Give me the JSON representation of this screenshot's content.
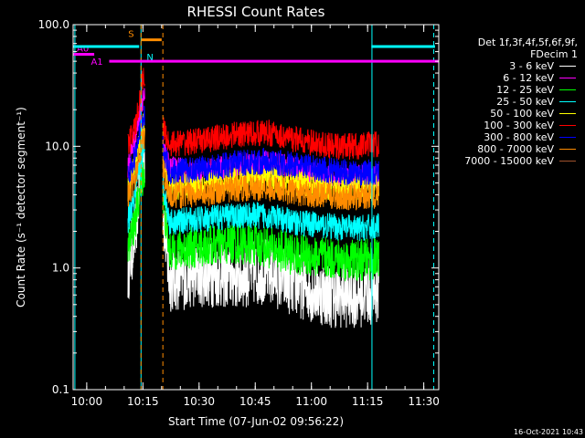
{
  "chart_data": {
    "type": "line",
    "title": "RHESSI Count Rates",
    "ylabel": "Count Rate (s⁻¹ detector segment⁻¹)",
    "xlabel": "Start Time (07-Jun-02 09:56:22)",
    "ylim": [
      0.1,
      100.0
    ],
    "yscale": "log",
    "yticks": [
      "100.0",
      "10.0",
      "1.0",
      "0.1"
    ],
    "xlim": [
      "09:56:22",
      "11:34:00"
    ],
    "xticks": [
      "10:00",
      "10:15",
      "10:30",
      "10:45",
      "11:00",
      "11:15",
      "11:30"
    ],
    "data_window": [
      "10:07:00",
      "11:19:00"
    ],
    "gap": [
      "10:15:30",
      "10:20:20"
    ],
    "series": [
      {
        "name": "3 - 6 keV",
        "color": "#ffffff",
        "points": [
          [
            "10:11",
            0.95
          ],
          [
            "10:13",
            2.0
          ],
          [
            "10:15",
            9.0
          ],
          [
            "10:20",
            4.0
          ],
          [
            "10:22",
            0.8
          ],
          [
            "10:30",
            0.9
          ],
          [
            "10:40",
            0.85
          ],
          [
            "10:48",
            0.95
          ],
          [
            "10:55",
            0.75
          ],
          [
            "11:05",
            0.6
          ],
          [
            "11:12",
            0.6
          ],
          [
            "11:18",
            0.65
          ]
        ]
      },
      {
        "name": "6 - 12 keV",
        "color": "#ff00ff",
        "points": [
          [
            "10:11",
            7.0
          ],
          [
            "10:13",
            12.0
          ],
          [
            "10:15",
            26.0
          ],
          [
            "10:20",
            10.0
          ],
          [
            "10:22",
            6.5
          ],
          [
            "10:30",
            6.0
          ],
          [
            "10:40",
            6.8
          ],
          [
            "10:48",
            7.2
          ],
          [
            "10:55",
            6.5
          ],
          [
            "11:05",
            5.5
          ],
          [
            "11:12",
            5.5
          ],
          [
            "11:18",
            5.6
          ]
        ]
      },
      {
        "name": "12 - 25 keV",
        "color": "#00ff00",
        "points": [
          [
            "10:11",
            1.4
          ],
          [
            "10:13",
            2.5
          ],
          [
            "10:15",
            6.0
          ],
          [
            "10:20",
            5.0
          ],
          [
            "10:22",
            1.4
          ],
          [
            "10:30",
            1.5
          ],
          [
            "10:40",
            1.6
          ],
          [
            "10:48",
            1.5
          ],
          [
            "10:55",
            1.3
          ],
          [
            "11:05",
            1.2
          ],
          [
            "11:12",
            1.15
          ],
          [
            "11:18",
            1.2
          ]
        ]
      },
      {
        "name": "25 - 50 keV",
        "color": "#00ffff",
        "points": [
          [
            "10:11",
            2.4
          ],
          [
            "10:13",
            4.0
          ],
          [
            "10:15",
            9.0
          ],
          [
            "10:20",
            6.0
          ],
          [
            "10:22",
            2.4
          ],
          [
            "10:30",
            2.5
          ],
          [
            "10:40",
            2.7
          ],
          [
            "10:48",
            2.7
          ],
          [
            "10:55",
            2.4
          ],
          [
            "11:05",
            2.2
          ],
          [
            "11:12",
            2.1
          ],
          [
            "11:18",
            2.2
          ]
        ]
      },
      {
        "name": "50 - 100 keV",
        "color": "#ffff00",
        "points": [
          [
            "10:11",
            4.5
          ],
          [
            "10:13",
            7.0
          ],
          [
            "10:15",
            15.0
          ],
          [
            "10:20",
            9.0
          ],
          [
            "10:22",
            4.6
          ],
          [
            "10:30",
            4.9
          ],
          [
            "10:40",
            5.3
          ],
          [
            "10:48",
            5.5
          ],
          [
            "10:55",
            5.0
          ],
          [
            "11:05",
            4.6
          ],
          [
            "11:12",
            4.5
          ],
          [
            "11:18",
            4.6
          ]
        ]
      },
      {
        "name": "100 - 300 keV",
        "color": "#ff0000",
        "points": [
          [
            "10:11",
            10.5
          ],
          [
            "10:13",
            14.0
          ],
          [
            "10:15",
            38.0
          ],
          [
            "10:20",
            15.0
          ],
          [
            "10:22",
            10.5
          ],
          [
            "10:30",
            11.0
          ],
          [
            "10:40",
            12.5
          ],
          [
            "10:48",
            13.0
          ],
          [
            "10:55",
            11.5
          ],
          [
            "11:05",
            10.0
          ],
          [
            "11:12",
            10.0
          ],
          [
            "11:18",
            10.5
          ]
        ]
      },
      {
        "name": "300 - 800 keV",
        "color": "#0000ff",
        "points": [
          [
            "10:11",
            5.5
          ],
          [
            "10:13",
            8.5
          ],
          [
            "10:15",
            18.0
          ],
          [
            "10:20",
            11.0
          ],
          [
            "10:22",
            6.2
          ],
          [
            "10:30",
            6.5
          ],
          [
            "10:40",
            7.2
          ],
          [
            "10:48",
            7.6
          ],
          [
            "10:55",
            7.0
          ],
          [
            "11:05",
            6.3
          ],
          [
            "11:12",
            6.0
          ],
          [
            "11:18",
            6.1
          ]
        ]
      },
      {
        "name": "800 - 7000 keV",
        "color": "#ff8c00",
        "points": [
          [
            "10:11",
            3.9
          ],
          [
            "10:13",
            5.5
          ],
          [
            "10:15",
            12.0
          ],
          [
            "10:20",
            7.5
          ],
          [
            "10:22",
            3.9
          ],
          [
            "10:30",
            4.1
          ],
          [
            "10:40",
            4.5
          ],
          [
            "10:48",
            4.6
          ],
          [
            "10:55",
            4.2
          ],
          [
            "11:05",
            3.9
          ],
          [
            "11:12",
            3.8
          ],
          [
            "11:18",
            3.9
          ]
        ]
      },
      {
        "name": "7000 - 15000 keV",
        "color": "#a0522d",
        "points": []
      }
    ],
    "flags": [
      {
        "label": "S",
        "color": "#ff8c00",
        "start": "10:14:30",
        "end": "10:20:00",
        "level": 75
      },
      {
        "label": "N",
        "color": "#00ffff",
        "start": "10:15:00",
        "end": "10:15:00",
        "level": 65
      },
      {
        "label": "A0",
        "color": "#ff00ff",
        "start": "09:56:22",
        "end": "10:02:00",
        "level": 57
      },
      {
        "label": "A1",
        "color": "#ff00ff",
        "start": "10:06:00",
        "end": "11:34:00",
        "level": 50
      },
      {
        "label": "",
        "color": "#00ffff",
        "start": "09:56:22",
        "end": "10:14:00",
        "level": 66
      },
      {
        "label": "",
        "color": "#00ffff",
        "start": "11:16:00",
        "end": "11:33:00",
        "level": 66
      }
    ],
    "vlines": [
      {
        "time": "09:56:50",
        "color": "#00ffff",
        "style": "solid"
      },
      {
        "time": "10:14:30",
        "color": "#00ffff",
        "style": "solid"
      },
      {
        "time": "10:14:30",
        "color": "#ff8c00",
        "style": "dashed"
      },
      {
        "time": "10:20:20",
        "color": "#ff8c00",
        "style": "dashed"
      },
      {
        "time": "11:16:10",
        "color": "#00ffff",
        "style": "solid"
      },
      {
        "time": "11:32:40",
        "color": "#00ffff",
        "style": "dashed"
      }
    ]
  },
  "legend": {
    "header1": "Det 1f,3f,4f,5f,6f,9f,",
    "header2": "FDecim 1"
  },
  "footer": {
    "timestamp": "16-Oct-2021 10:43"
  }
}
